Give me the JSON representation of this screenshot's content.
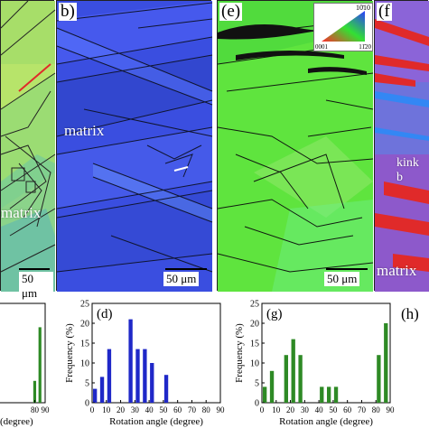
{
  "panels": {
    "a": {
      "label": "",
      "matrix_text": "matrix",
      "scale_text": "50 μm"
    },
    "b": {
      "label": "b)",
      "matrix_text": "matrix",
      "scale_text": "50 μm"
    },
    "e": {
      "label": "(e)",
      "scale_text": "50 μm"
    },
    "f": {
      "label": "(f",
      "kink_text": "kink b",
      "matrix_text": "matrix"
    },
    "h": {
      "label": "(h)"
    }
  },
  "ipf_legend": {
    "top": "10̄10",
    "left": "0001",
    "right": "11̄20"
  },
  "colors": {
    "map_a": "#b7e46a",
    "map_b": "#3a4ee0",
    "map_e": "#5fe43e",
    "map_f": "#7a5ad0",
    "bar_blue": "#1f28c8",
    "bar_green": "#2e8a25",
    "kink_red": "#e02a2a"
  },
  "chart_data": [
    {
      "panel": "c",
      "type": "bar",
      "title": "",
      "xlabel": "(degree)",
      "ylabel": "",
      "xlim": [
        null,
        90
      ],
      "ylim": [
        0,
        25
      ],
      "series": [
        {
          "color": "#2e8a25",
          "x": [
            80,
            85
          ],
          "values": [
            5.5,
            19
          ]
        }
      ],
      "x_ticks": [
        "80",
        "90"
      ]
    },
    {
      "panel": "d",
      "type": "bar",
      "label": "(d)",
      "xlabel": "Rotation angle (degree)",
      "ylabel": "Frequency (%)",
      "xlim": [
        0,
        90
      ],
      "ylim": [
        0,
        25
      ],
      "x_ticks": [
        "0",
        "10",
        "20",
        "30",
        "40",
        "50",
        "60",
        "70",
        "80",
        "90"
      ],
      "y_ticks": [
        "0",
        "5",
        "10",
        "15",
        "20",
        "25"
      ],
      "series": [
        {
          "color": "#1f28c8",
          "x": [
            2,
            7,
            12,
            27,
            32,
            37,
            42,
            52
          ],
          "values": [
            3.5,
            6.5,
            13.5,
            21,
            13.5,
            13.5,
            10,
            7
          ]
        }
      ]
    },
    {
      "panel": "g",
      "type": "bar",
      "label": "(g)",
      "xlabel": "Rotation angle (degree)",
      "ylabel": "Frequency (%)",
      "xlim": [
        0,
        90
      ],
      "ylim": [
        0,
        25
      ],
      "x_ticks": [
        "0",
        "10",
        "20",
        "30",
        "40",
        "50",
        "60",
        "70",
        "80",
        "90"
      ],
      "y_ticks": [
        "0",
        "5",
        "10",
        "15",
        "20",
        "25"
      ],
      "series": [
        {
          "color": "#2e8a25",
          "x": [
            2,
            7,
            17,
            22,
            27,
            42,
            47,
            52,
            82,
            87
          ],
          "values": [
            4,
            8,
            12,
            16,
            12,
            4,
            4,
            4,
            12,
            20
          ]
        }
      ]
    }
  ]
}
